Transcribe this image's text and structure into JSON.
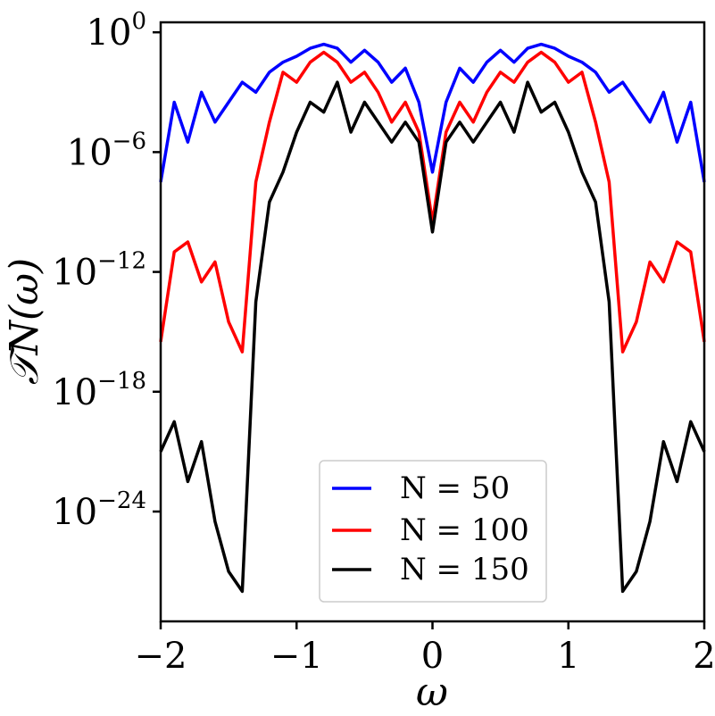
{
  "chart_data": {
    "type": "line",
    "xlabel": "ω",
    "ylabel": "𝒯N(ω)",
    "xlim": [
      -2,
      2
    ],
    "ylim_log10": [
      -29.5,
      0.5
    ],
    "y_scale": "log",
    "grid": false,
    "legend_position": "bottom-center",
    "x_ticks": [
      {
        "value": -2,
        "label": "−2"
      },
      {
        "value": -1,
        "label": "−1"
      },
      {
        "value": 0,
        "label": "0"
      },
      {
        "value": 1,
        "label": "1"
      },
      {
        "value": 2,
        "label": "2"
      }
    ],
    "y_ticks": [
      {
        "exp": 0,
        "base": "10",
        "sup": "0"
      },
      {
        "exp": -6,
        "base": "10",
        "sup": "−6"
      },
      {
        "exp": -12,
        "base": "10",
        "sup": "−12"
      },
      {
        "exp": -18,
        "base": "10",
        "sup": "−18"
      },
      {
        "exp": -24,
        "base": "10",
        "sup": "−24"
      }
    ],
    "series": [
      {
        "name": "N = 50",
        "color": "#0000ff",
        "x": [
          -2.0,
          -1.9,
          -1.8,
          -1.7,
          -1.6,
          -1.5,
          -1.4,
          -1.3,
          -1.2,
          -1.1,
          -1.0,
          -0.9,
          -0.8,
          -0.7,
          -0.6,
          -0.5,
          -0.4,
          -0.3,
          -0.2,
          -0.1,
          0.0,
          0.1,
          0.2,
          0.3,
          0.4,
          0.5,
          0.6,
          0.7,
          0.8,
          0.9,
          1.0,
          1.1,
          1.2,
          1.3,
          1.4,
          1.5,
          1.6,
          1.7,
          1.8,
          1.9,
          2.0
        ],
        "log10_y": [
          -7.5,
          -3.5,
          -5.5,
          -3.0,
          -4.5,
          -3.5,
          -2.5,
          -3.0,
          -2.0,
          -1.5,
          -1.2,
          -0.8,
          -0.6,
          -0.8,
          -1.5,
          -0.9,
          -1.5,
          -2.5,
          -1.8,
          -3.5,
          -7.0,
          -3.5,
          -1.8,
          -2.5,
          -1.5,
          -0.9,
          -1.5,
          -0.8,
          -0.6,
          -0.8,
          -1.2,
          -1.5,
          -2.0,
          -3.0,
          -2.5,
          -3.5,
          -4.5,
          -3.0,
          -5.5,
          -3.5,
          -7.5
        ]
      },
      {
        "name": "N = 100",
        "color": "#ff0000",
        "x": [
          -2.0,
          -1.9,
          -1.8,
          -1.7,
          -1.6,
          -1.5,
          -1.4,
          -1.3,
          -1.2,
          -1.1,
          -1.0,
          -0.9,
          -0.8,
          -0.7,
          -0.6,
          -0.5,
          -0.4,
          -0.3,
          -0.2,
          -0.1,
          0.0,
          0.1,
          0.2,
          0.3,
          0.4,
          0.5,
          0.6,
          0.7,
          0.8,
          0.9,
          1.0,
          1.1,
          1.2,
          1.3,
          1.4,
          1.5,
          1.6,
          1.7,
          1.8,
          1.9,
          2.0
        ],
        "log10_y": [
          -15.5,
          -11.0,
          -10.5,
          -12.5,
          -11.5,
          -14.5,
          -16.0,
          -7.5,
          -4.5,
          -2.0,
          -2.5,
          -1.5,
          -1.0,
          -1.5,
          -2.5,
          -2.0,
          -3.0,
          -4.5,
          -3.5,
          -5.0,
          -9.5,
          -5.0,
          -3.5,
          -4.5,
          -3.0,
          -2.0,
          -2.5,
          -1.5,
          -1.0,
          -1.5,
          -2.5,
          -2.0,
          -4.5,
          -7.5,
          -16.0,
          -14.5,
          -11.5,
          -12.5,
          -10.5,
          -11.0,
          -15.5
        ]
      },
      {
        "name": "N = 150",
        "color": "#000000",
        "x": [
          -2.0,
          -1.9,
          -1.8,
          -1.7,
          -1.6,
          -1.5,
          -1.4,
          -1.3,
          -1.2,
          -1.1,
          -1.0,
          -0.9,
          -0.8,
          -0.7,
          -0.6,
          -0.5,
          -0.4,
          -0.3,
          -0.2,
          -0.1,
          0.0,
          0.1,
          0.2,
          0.3,
          0.4,
          0.5,
          0.6,
          0.7,
          0.8,
          0.9,
          1.0,
          1.1,
          1.2,
          1.3,
          1.4,
          1.5,
          1.6,
          1.7,
          1.8,
          1.9,
          2.0
        ],
        "log10_y": [
          -21.0,
          -19.5,
          -22.5,
          -20.5,
          -24.5,
          -27.0,
          -28.0,
          -13.5,
          -8.5,
          -7.0,
          -5.0,
          -3.5,
          -4.0,
          -2.5,
          -5.0,
          -3.5,
          -4.5,
          -5.5,
          -4.5,
          -5.5,
          -10.0,
          -5.5,
          -4.5,
          -5.5,
          -4.5,
          -3.5,
          -5.0,
          -2.5,
          -4.0,
          -3.5,
          -5.0,
          -7.0,
          -8.5,
          -13.5,
          -28.0,
          -27.0,
          -24.5,
          -20.5,
          -22.5,
          -19.5,
          -21.0
        ]
      }
    ]
  }
}
